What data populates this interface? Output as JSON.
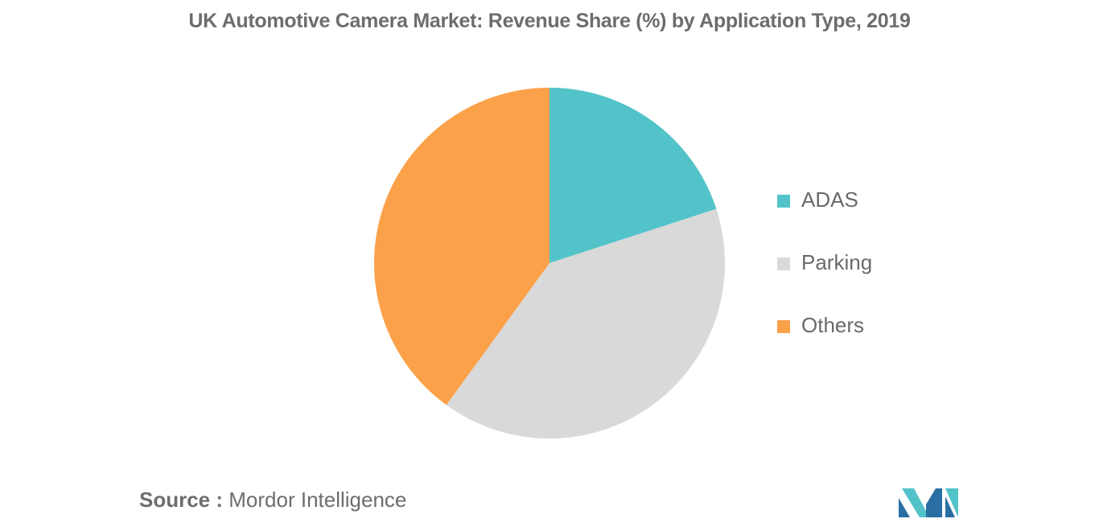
{
  "chart_data": {
    "type": "pie",
    "title": "UK Automotive Camera Market: Revenue Share (%) by Application Type, 2019",
    "slices": [
      {
        "label": "ADAS",
        "value": 20,
        "color": "#52c3c9"
      },
      {
        "label": "Parking",
        "value": 40,
        "color": "#d9d9d9"
      },
      {
        "label": "Others",
        "value": 40,
        "color": "#fba14a"
      }
    ],
    "legend_position": "right"
  },
  "source": {
    "label": "Source :",
    "text": "Mordor Intelligence"
  },
  "logo": {
    "name": "mordor-intelligence-logo",
    "colors": [
      "#2a6fa3",
      "#52c3c9"
    ]
  }
}
